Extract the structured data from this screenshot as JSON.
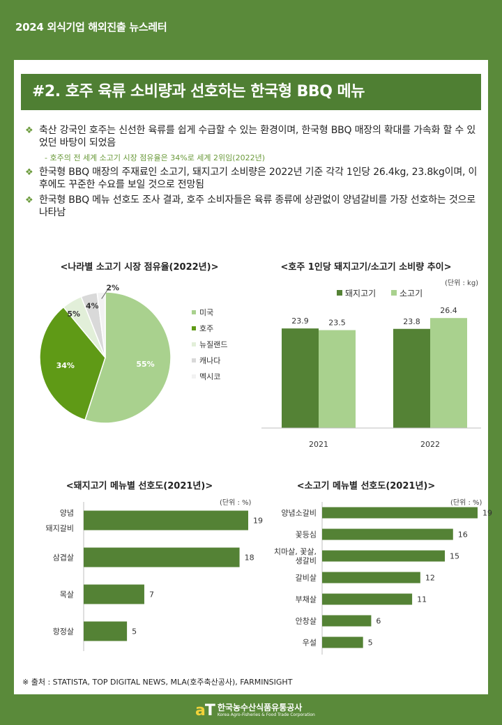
{
  "header": {
    "title": "2024 외식기업 해외진출 뉴스레터"
  },
  "section": {
    "title": "#2. 호주 육류 소비량과 선호하는 한국형 BBQ 메뉴"
  },
  "bullets": [
    {
      "text": "축산 강국인 호주는 신선한 육류를 쉽게 수급할 수 있는 환경이며, 한국형 BBQ 매장의 확대를 가속화 할 수 있었던 바탕이 되었음",
      "note": "- 호주의 전 세계 소고기 시장 점유율은 34%로 세계 2위임(2022년)"
    },
    {
      "text": "한국형 BBQ 매장의 주재료인 소고기, 돼지고기 소비량은 2022년 기준 각각 1인당 26.4kg, 23.8kg이며, 이후에도 꾸준한 수요를 보일 것으로 전망됨"
    },
    {
      "text": "한국형 BBQ 메뉴 선호도 조사 결과, 호주 소비자들은 육류 종류에 상관없이 양념갈비를 가장 선호하는 것으로 나타남"
    }
  ],
  "bullet_mark": "❖",
  "chart_data": [
    {
      "type": "pie",
      "title": "<나라별 소고기 시장 점유율(2022년)>",
      "categories": [
        "미국",
        "호주",
        "뉴질랜드",
        "캐나다",
        "멕시코"
      ],
      "values": [
        55,
        34,
        5,
        4,
        2
      ],
      "labels": [
        "55%",
        "34%",
        "5%",
        "4%",
        "2%"
      ],
      "colors": [
        "#a9d18e",
        "#5f9a16",
        "#e2efd9",
        "#d9d9d9",
        "#f2f2f2"
      ],
      "legend": "right"
    },
    {
      "type": "bar",
      "title": "<호주 1인당 돼지고기/소고기 소비량 추이>",
      "unit": "(단위 : kg)",
      "categories": [
        "2021",
        "2022"
      ],
      "series": [
        {
          "name": "돼지고기",
          "values": [
            23.9,
            23.8
          ],
          "color": "#548235"
        },
        {
          "name": "소고기",
          "values": [
            23.5,
            26.4
          ],
          "color": "#a9d18e"
        }
      ],
      "value_labels": [
        [
          "23.9",
          "23.8"
        ],
        [
          "23.5",
          "26.4"
        ]
      ],
      "legend": "top-left"
    },
    {
      "type": "bar",
      "orientation": "horizontal",
      "title": "<돼지고기 메뉴별 선호도(2021년)>",
      "unit": "(단위 : %)",
      "categories": [
        "양념 돼지갈비",
        "삼겹살",
        "목살",
        "항정살"
      ],
      "category_lines": [
        [
          "양념",
          "돼지갈비"
        ],
        [
          "삼겹살"
        ],
        [
          "목살"
        ],
        [
          "항정살"
        ]
      ],
      "values": [
        19,
        18,
        7,
        5
      ],
      "value_labels": [
        "19",
        "18",
        "7",
        "5"
      ],
      "color": "#548235"
    },
    {
      "type": "bar",
      "orientation": "horizontal",
      "title": "<소고기 메뉴별 선호도(2021년)>",
      "unit": "(단위 : %)",
      "categories": [
        "양념소갈비",
        "꽃등심",
        "치마살, 꽃살, 생갈비",
        "갈비살",
        "부채살",
        "안창살",
        "우설"
      ],
      "category_lines": [
        [
          "양념소갈비"
        ],
        [
          "꽃등심"
        ],
        [
          "치마살, 꽃살,",
          "생갈비"
        ],
        [
          "갈비살"
        ],
        [
          "부채살"
        ],
        [
          "안창살"
        ],
        [
          "우설"
        ]
      ],
      "values": [
        19,
        16,
        15,
        12,
        11,
        6,
        5
      ],
      "value_labels": [
        "19",
        "16",
        "15",
        "12",
        "11",
        "6",
        "5"
      ],
      "color": "#548235"
    }
  ],
  "source": "※ 출처 : STATISTA, TOP DIGITAL NEWS, MLA(호주축산공사), FARMINSIGHT",
  "footer": {
    "logo_a": "a",
    "logo_t": "T",
    "org_kr": "한국농수산식품유통공사",
    "org_en": "Korea Agro-Fisheries & Food Trade Corporation"
  }
}
